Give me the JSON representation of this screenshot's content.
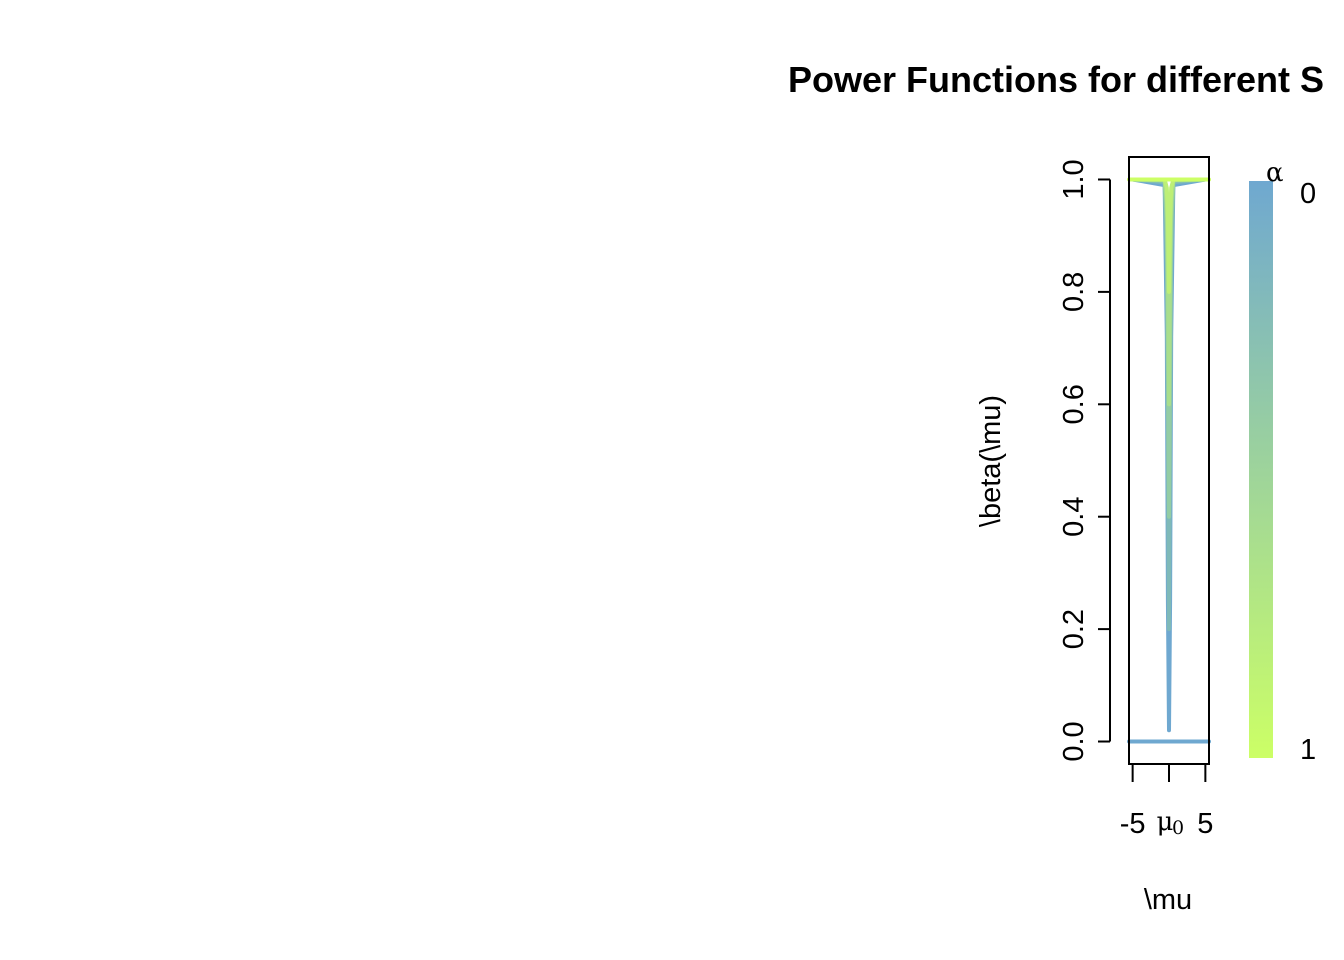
{
  "chart_data": {
    "type": "line",
    "title": "Power Functions for different S",
    "xlabel": "\\mu",
    "ylabel": "\\beta(\\mu)",
    "xlim": [
      -5.5,
      5.5
    ],
    "ylim": [
      -0.04,
      1.04
    ],
    "x_ticks": [
      {
        "value": -5,
        "label": "-5"
      },
      {
        "value": 0,
        "label": "μ",
        "subscript": "0"
      },
      {
        "value": 5,
        "label": "5"
      }
    ],
    "y_ticks": [
      {
        "value": 0.0,
        "label": "0.0"
      },
      {
        "value": 0.2,
        "label": "0.2"
      },
      {
        "value": 0.4,
        "label": "0.4"
      },
      {
        "value": 0.6,
        "label": "0.6"
      },
      {
        "value": 0.8,
        "label": "0.8"
      },
      {
        "value": 1.0,
        "label": "1.0"
      }
    ],
    "grid": false,
    "legend": {
      "title": "α",
      "placement": "right",
      "top_label": "0",
      "bottom_label": "1",
      "color_top": "#6fa8d0",
      "color_bottom": "#ccff66"
    },
    "series": [
      {
        "alpha": 0.0,
        "color": "#6fa8d0",
        "flat_value": 0.0
      },
      {
        "alpha": 0.02,
        "color": "#6fa8d0",
        "x": [
          -5,
          -0.6,
          -0.3,
          -0.15,
          0,
          0.15,
          0.3,
          0.6,
          5
        ],
        "y": [
          1.0,
          0.99,
          0.72,
          0.25,
          0.02,
          0.25,
          0.72,
          0.99,
          1.0
        ]
      },
      {
        "alpha": 0.2,
        "color": "#7fb9b8",
        "x": [
          -5,
          -0.6,
          -0.3,
          -0.15,
          0,
          0.15,
          0.3,
          0.6,
          5
        ],
        "y": [
          1.0,
          0.995,
          0.85,
          0.55,
          0.2,
          0.55,
          0.85,
          0.995,
          1.0
        ]
      },
      {
        "alpha": 0.4,
        "color": "#93cca4",
        "x": [
          -5,
          -0.6,
          -0.3,
          -0.15,
          0,
          0.15,
          0.3,
          0.6,
          5
        ],
        "y": [
          1.0,
          0.998,
          0.92,
          0.7,
          0.4,
          0.7,
          0.92,
          0.998,
          1.0
        ]
      },
      {
        "alpha": 0.6,
        "color": "#a8de8c",
        "x": [
          -5,
          -0.6,
          -0.3,
          -0.15,
          0,
          0.15,
          0.3,
          0.6,
          5
        ],
        "y": [
          1.0,
          0.999,
          0.96,
          0.85,
          0.6,
          0.85,
          0.96,
          0.999,
          1.0
        ]
      },
      {
        "alpha": 0.8,
        "color": "#bdef76",
        "x": [
          -5,
          -0.6,
          -0.3,
          -0.15,
          0,
          0.15,
          0.3,
          0.6,
          5
        ],
        "y": [
          1.0,
          1.0,
          0.985,
          0.93,
          0.8,
          0.93,
          0.985,
          1.0,
          1.0
        ]
      },
      {
        "alpha": 1.0,
        "color": "#ccff66",
        "flat_value": 1.0
      }
    ]
  }
}
